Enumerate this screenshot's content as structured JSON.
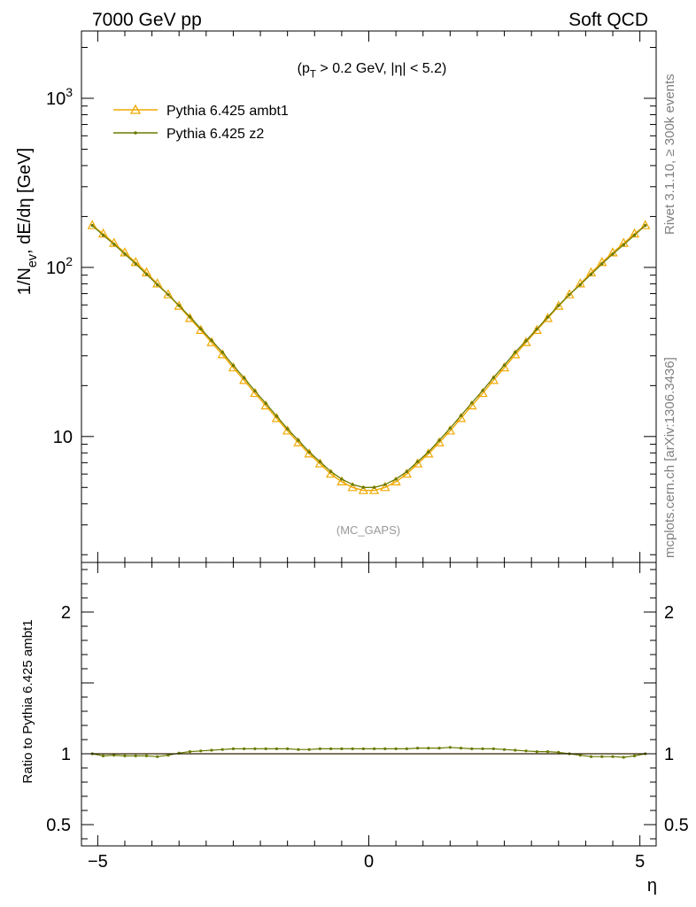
{
  "header": {
    "left": "7000 GeV pp",
    "right": "Soft QCD"
  },
  "side": {
    "rivet": "Rivet 3.1.10, ≥ 300k events",
    "mcplots": "mcplots.cern.ch [arXiv:1306.3436]"
  },
  "labels": {
    "cuts": "(p_T > 0.2 GeV, |η| < 5.2)",
    "watermark": "(MC_GAPS)",
    "ylabel_main": "1/N_ev, dE/dη [GeV]",
    "ylabel_ratio": "Ratio to Pythia 6.425 ambt1",
    "xlabel": "η"
  },
  "legend": {
    "items": [
      {
        "label": "Pythia 6.425 ambt1",
        "color": "#f0a800",
        "marker": "triangle-open"
      },
      {
        "label": "Pythia 6.425 z2",
        "color": "#6b7a00",
        "marker": "dot"
      }
    ]
  },
  "chart_data": [
    {
      "type": "line",
      "panel": "main",
      "yscale": "log",
      "xlim": [
        -5.3,
        5.3
      ],
      "ylim": [
        1.8,
        2500
      ],
      "ytick_labels": [
        "10",
        "10^2",
        "10^3"
      ],
      "series": [
        {
          "name": "Pythia 6.425 ambt1",
          "color": "#f0a800",
          "x": [
            -5.1,
            -4.9,
            -4.7,
            -4.5,
            -4.3,
            -4.1,
            -3.9,
            -3.7,
            -3.5,
            -3.3,
            -3.1,
            -2.9,
            -2.7,
            -2.5,
            -2.3,
            -2.1,
            -1.9,
            -1.7,
            -1.5,
            -1.3,
            -1.1,
            -0.9,
            -0.7,
            -0.5,
            -0.3,
            -0.1,
            0.1,
            0.3,
            0.5,
            0.7,
            0.9,
            1.1,
            1.3,
            1.5,
            1.7,
            1.9,
            2.1,
            2.3,
            2.5,
            2.7,
            2.9,
            3.1,
            3.3,
            3.5,
            3.7,
            3.9,
            4.1,
            4.3,
            4.5,
            4.7,
            4.9,
            5.1
          ],
          "y": [
            177,
            158,
            139,
            122,
            107,
            93,
            80,
            69,
            59,
            50,
            42.5,
            36,
            30.5,
            25.5,
            21.5,
            18,
            15.2,
            12.8,
            10.8,
            9.2,
            7.9,
            6.9,
            6.0,
            5.4,
            5.0,
            4.8,
            4.8,
            5.0,
            5.4,
            6.0,
            6.9,
            7.9,
            9.2,
            10.8,
            12.8,
            15.2,
            18,
            21.5,
            25.5,
            30.5,
            36,
            42.5,
            50,
            59,
            69,
            80,
            93,
            107,
            122,
            139,
            158,
            177
          ]
        },
        {
          "name": "Pythia 6.425 z2",
          "color": "#6b7a00",
          "x": [
            -5.1,
            -4.9,
            -4.7,
            -4.5,
            -4.3,
            -4.1,
            -3.9,
            -3.7,
            -3.5,
            -3.3,
            -3.1,
            -2.9,
            -2.7,
            -2.5,
            -2.3,
            -2.1,
            -1.9,
            -1.7,
            -1.5,
            -1.3,
            -1.1,
            -0.9,
            -0.7,
            -0.5,
            -0.3,
            -0.1,
            0.1,
            0.3,
            0.5,
            0.7,
            0.9,
            1.1,
            1.3,
            1.5,
            1.7,
            1.9,
            2.1,
            2.3,
            2.5,
            2.7,
            2.9,
            3.1,
            3.3,
            3.5,
            3.7,
            3.9,
            4.1,
            4.3,
            4.5,
            4.7,
            4.9,
            5.1
          ],
          "y": [
            177,
            155,
            137,
            120,
            105,
            91,
            79,
            69,
            59.5,
            51,
            43.4,
            37,
            31.5,
            26.3,
            22.2,
            18.6,
            15.7,
            13.2,
            11.1,
            9.5,
            8.1,
            7.1,
            6.2,
            5.6,
            5.2,
            5.0,
            5.0,
            5.2,
            5.6,
            6.2,
            7.1,
            8.1,
            9.5,
            11.2,
            13.3,
            15.8,
            18.7,
            22.3,
            26.4,
            31.5,
            36.8,
            43.2,
            50.8,
            59.5,
            69,
            79,
            91,
            105,
            120,
            136,
            155,
            177
          ]
        }
      ]
    },
    {
      "type": "line",
      "panel": "ratio",
      "xlim": [
        -5.3,
        5.3
      ],
      "ylim": [
        0.35,
        2.35
      ],
      "ytick_labels": [
        "0.5",
        "1",
        "2"
      ],
      "xtick_labels": [
        "−5",
        "0",
        "5"
      ],
      "series": [
        {
          "name": "Pythia 6.425 ambt1",
          "color": "#f0a800",
          "x": [
            -5.1,
            5.1
          ],
          "y": [
            1.0,
            1.0
          ]
        },
        {
          "name": "Pythia 6.425 z2",
          "color": "#6b7a00",
          "x": [
            -5.1,
            -4.9,
            -4.7,
            -4.5,
            -4.3,
            -4.1,
            -3.9,
            -3.7,
            -3.5,
            -3.3,
            -3.1,
            -2.9,
            -2.7,
            -2.5,
            -2.3,
            -2.1,
            -1.9,
            -1.7,
            -1.5,
            -1.3,
            -1.1,
            -0.9,
            -0.7,
            -0.5,
            -0.3,
            -0.1,
            0.1,
            0.3,
            0.5,
            0.7,
            0.9,
            1.1,
            1.3,
            1.5,
            1.7,
            1.9,
            2.1,
            2.3,
            2.5,
            2.7,
            2.9,
            3.1,
            3.3,
            3.5,
            3.7,
            3.9,
            4.1,
            4.3,
            4.5,
            4.7,
            4.9,
            5.1
          ],
          "y": [
            1.0,
            0.985,
            0.99,
            0.985,
            0.985,
            0.985,
            0.98,
            0.99,
            1.005,
            1.015,
            1.02,
            1.025,
            1.03,
            1.035,
            1.035,
            1.035,
            1.035,
            1.035,
            1.035,
            1.03,
            1.03,
            1.035,
            1.035,
            1.035,
            1.035,
            1.035,
            1.035,
            1.035,
            1.035,
            1.035,
            1.04,
            1.04,
            1.04,
            1.045,
            1.04,
            1.035,
            1.035,
            1.035,
            1.03,
            1.025,
            1.02,
            1.015,
            1.015,
            1.01,
            1.0,
            0.99,
            0.98,
            0.98,
            0.98,
            0.975,
            0.985,
            1.0
          ]
        }
      ]
    }
  ]
}
